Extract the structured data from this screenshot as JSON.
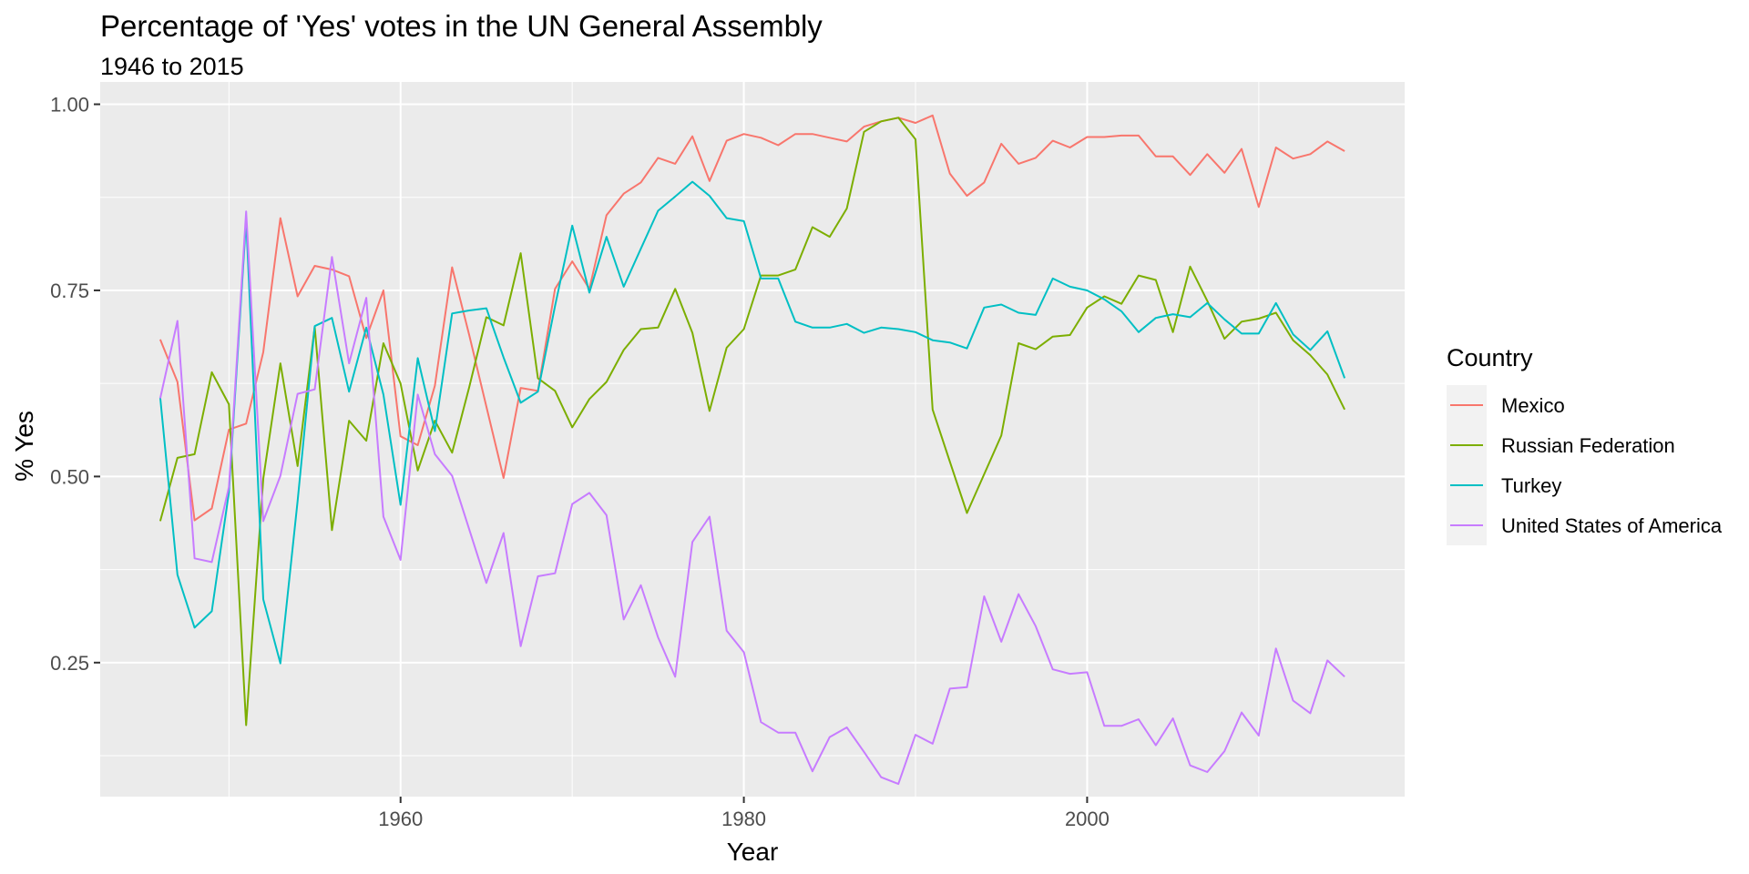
{
  "chart_data": {
    "type": "line",
    "title": "Percentage of 'Yes' votes in the UN General Assembly",
    "subtitle": "1946 to 2015",
    "xlabel": "Year",
    "ylabel": "% Yes",
    "xlim": [
      1942.5,
      2018.5
    ],
    "ylim": [
      0.07,
      1.03
    ],
    "x_ticks": [
      1960,
      1980,
      2000
    ],
    "x_tick_labels": [
      "1960",
      "1980",
      "2000"
    ],
    "x_minor_ticks": [
      1950,
      1970,
      1990,
      2010
    ],
    "y_ticks": [
      0.25,
      0.5,
      0.75,
      1.0
    ],
    "y_tick_labels": [
      "0.25",
      "0.50",
      "0.75",
      "1.00"
    ],
    "y_minor_ticks": [
      0.125,
      0.375,
      0.625,
      0.875
    ],
    "grid": true,
    "legend": {
      "title": "Country",
      "position": "right"
    },
    "x": [
      1946,
      1947,
      1948,
      1949,
      1950,
      1951,
      1952,
      1953,
      1954,
      1955,
      1956,
      1957,
      1958,
      1959,
      1960,
      1961,
      1962,
      1963,
      1964,
      1965,
      1966,
      1967,
      1968,
      1969,
      1970,
      1971,
      1972,
      1973,
      1974,
      1975,
      1976,
      1977,
      1978,
      1979,
      1980,
      1981,
      1982,
      1983,
      1984,
      1985,
      1986,
      1987,
      1988,
      1989,
      1990,
      1991,
      1992,
      1993,
      1994,
      1995,
      1996,
      1997,
      1998,
      1999,
      2000,
      2001,
      2002,
      2003,
      2004,
      2005,
      2006,
      2007,
      2008,
      2009,
      2010,
      2011,
      2012,
      2013,
      2014,
      2015
    ],
    "series": [
      {
        "name": "Mexico",
        "color": "#F8766D",
        "values": [
          0.684,
          0.627,
          0.441,
          0.457,
          0.563,
          0.571,
          0.667,
          0.847,
          0.742,
          0.783,
          0.778,
          0.769,
          0.686,
          0.75,
          0.554,
          0.542,
          0.622,
          0.781,
          0.69,
          0.594,
          0.498,
          0.619,
          0.615,
          0.752,
          0.789,
          0.752,
          0.851,
          0.88,
          0.895,
          0.928,
          0.92,
          0.957,
          0.897,
          0.951,
          0.96,
          0.955,
          0.945,
          0.96,
          0.96,
          0.955,
          0.95,
          0.97,
          0.977,
          0.982,
          0.975,
          0.985,
          0.907,
          0.877,
          0.895,
          0.947,
          0.92,
          0.928,
          0.951,
          0.942,
          0.956,
          0.956,
          0.958,
          0.958,
          0.93,
          0.93,
          0.905,
          0.933,
          0.908,
          0.94,
          0.862,
          0.942,
          0.927,
          0.933,
          0.95,
          0.937
        ]
      },
      {
        "name": "Russian Federation",
        "color": "#7CAE00",
        "values": [
          0.44,
          0.525,
          0.53,
          0.64,
          0.597,
          0.166,
          0.497,
          0.652,
          0.514,
          0.701,
          0.428,
          0.575,
          0.548,
          0.679,
          0.625,
          0.508,
          0.575,
          0.532,
          0.62,
          0.714,
          0.703,
          0.8,
          0.632,
          0.615,
          0.566,
          0.604,
          0.627,
          0.67,
          0.698,
          0.7,
          0.752,
          0.693,
          0.588,
          0.673,
          0.698,
          0.77,
          0.77,
          0.778,
          0.835,
          0.822,
          0.86,
          0.963,
          0.977,
          0.982,
          0.953,
          0.59,
          0.52,
          0.451,
          0.503,
          0.555,
          0.679,
          0.671,
          0.688,
          0.69,
          0.727,
          0.742,
          0.732,
          0.77,
          0.764,
          0.694,
          0.782,
          0.736,
          0.685,
          0.708,
          0.712,
          0.72,
          0.683,
          0.663,
          0.637,
          0.59
        ]
      },
      {
        "name": "Turkey",
        "color": "#00BFC4",
        "values": [
          0.606,
          0.368,
          0.297,
          0.319,
          0.479,
          0.845,
          0.335,
          0.249,
          0.467,
          0.702,
          0.713,
          0.614,
          0.7,
          0.61,
          0.462,
          0.659,
          0.561,
          0.719,
          0.723,
          0.726,
          0.66,
          0.599,
          0.614,
          0.729,
          0.837,
          0.747,
          0.822,
          0.755,
          0.806,
          0.857,
          0.876,
          0.896,
          0.877,
          0.847,
          0.843,
          0.766,
          0.766,
          0.708,
          0.7,
          0.7,
          0.705,
          0.693,
          0.7,
          0.698,
          0.694,
          0.683,
          0.68,
          0.672,
          0.727,
          0.731,
          0.72,
          0.717,
          0.766,
          0.755,
          0.75,
          0.738,
          0.722,
          0.694,
          0.713,
          0.718,
          0.714,
          0.733,
          0.711,
          0.692,
          0.692,
          0.733,
          0.691,
          0.67,
          0.695,
          0.632
        ]
      },
      {
        "name": "United States of America",
        "color": "#C77CFF",
        "values": [
          0.605,
          0.709,
          0.39,
          0.385,
          0.486,
          0.856,
          0.44,
          0.501,
          0.611,
          0.617,
          0.795,
          0.652,
          0.74,
          0.446,
          0.388,
          0.61,
          0.53,
          0.501,
          0.429,
          0.357,
          0.424,
          0.272,
          0.366,
          0.37,
          0.463,
          0.478,
          0.448,
          0.308,
          0.354,
          0.284,
          0.231,
          0.412,
          0.446,
          0.293,
          0.264,
          0.17,
          0.156,
          0.156,
          0.104,
          0.15,
          0.163,
          0.13,
          0.096,
          0.087,
          0.153,
          0.141,
          0.215,
          0.217,
          0.339,
          0.278,
          0.342,
          0.299,
          0.241,
          0.235,
          0.237,
          0.165,
          0.165,
          0.174,
          0.139,
          0.175,
          0.112,
          0.103,
          0.131,
          0.183,
          0.152,
          0.269,
          0.199,
          0.182,
          0.253,
          0.231
        ]
      }
    ]
  }
}
